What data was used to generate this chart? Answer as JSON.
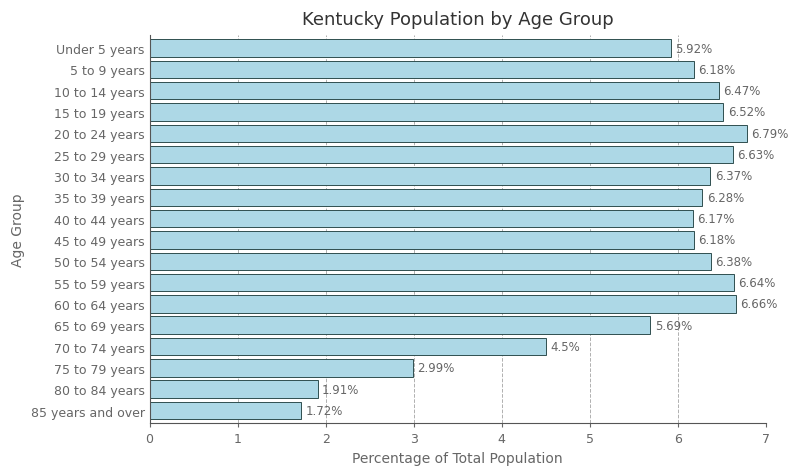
{
  "title": "Kentucky Population by Age Group",
  "xlabel": "Percentage of Total Population",
  "ylabel": "Age Group",
  "categories": [
    "Under 5 years",
    "5 to 9 years",
    "10 to 14 years",
    "15 to 19 years",
    "20 to 24 years",
    "25 to 29 years",
    "30 to 34 years",
    "35 to 39 years",
    "40 to 44 years",
    "45 to 49 years",
    "50 to 54 years",
    "55 to 59 years",
    "60 to 64 years",
    "65 to 69 years",
    "70 to 74 years",
    "75 to 79 years",
    "80 to 84 years",
    "85 years and over"
  ],
  "values": [
    5.92,
    6.18,
    6.47,
    6.52,
    6.79,
    6.63,
    6.37,
    6.28,
    6.17,
    6.18,
    6.38,
    6.64,
    6.66,
    5.69,
    4.5,
    2.99,
    1.91,
    1.72
  ],
  "labels": [
    "5.92%",
    "6.18%",
    "6.47%",
    "6.52%",
    "6.79%",
    "6.63%",
    "6.37%",
    "6.28%",
    "6.17%",
    "6.18%",
    "6.38%",
    "6.64%",
    "6.66%",
    "5.69%",
    "4.5%",
    "2.99%",
    "1.91%",
    "1.72%"
  ],
  "bar_color": "#add8e6",
  "bar_edgecolor": "#2f4f4f",
  "grid_color": "#b0b0b0",
  "text_color": "#666666",
  "xlim": [
    0,
    7
  ],
  "xticks": [
    0,
    1,
    2,
    3,
    4,
    5,
    6,
    7
  ],
  "plot_bg_color": "#ffffff",
  "fig_bg_color": "#ffffff",
  "title_fontsize": 13,
  "label_fontsize": 10,
  "tick_fontsize": 9,
  "annotation_fontsize": 8.5,
  "bar_height": 0.82
}
